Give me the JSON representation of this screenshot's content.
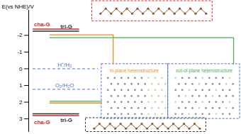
{
  "chart_data": {
    "type": "energy_diagram",
    "y_label": "E(vs NHE)/V",
    "ylim": [
      -3.5,
      3.8
    ],
    "yticks": [
      -2,
      -1,
      0,
      1,
      2,
      3
    ],
    "materials": [
      {
        "name": "cha-G",
        "color": "#d62728",
        "cbm": -2.37,
        "vbm": 2.8
      },
      {
        "name": "tri-G",
        "color": "#333333",
        "cbm": -2.25,
        "vbm": 2.7
      }
    ],
    "heterostructures": [
      {
        "name": "in-plane heterostructure",
        "color": "#f28c28",
        "cbm": -2.03,
        "vbm": 2.05
      },
      {
        "name": "out-of-plane heterostructure",
        "color": "#4caf50",
        "cbm": -1.86,
        "vbm": 1.95
      }
    ],
    "references": [
      {
        "name": "H⁺/H₂",
        "value": 0,
        "color": "#4a6fd1"
      },
      {
        "name": "O₂/H₂O",
        "value": 1.23,
        "color": "#4a6fd1"
      }
    ]
  }
}
